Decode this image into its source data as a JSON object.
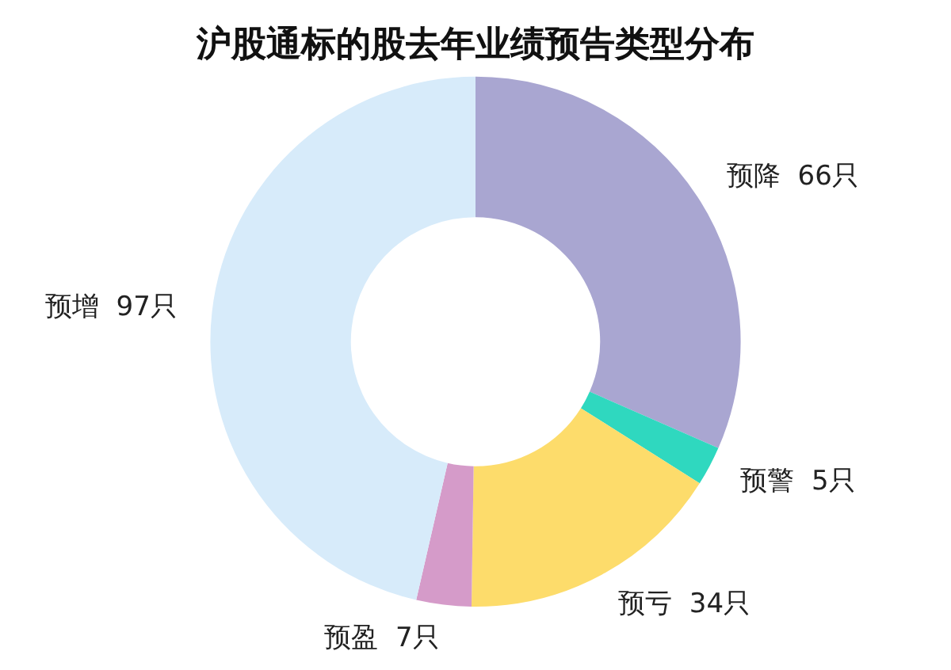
{
  "chart_data": {
    "type": "donut",
    "title": "沪股通标的股去年业绩预告类型分布",
    "categories": [
      "预降",
      "预警",
      "预亏",
      "预盈",
      "预增"
    ],
    "values": [
      66,
      5,
      34,
      7,
      97
    ],
    "value_labels": [
      "66只",
      "5只",
      "34只",
      "7只",
      "97只"
    ],
    "colors": [
      "#a9a6d1",
      "#2fd8bf",
      "#fddc6b",
      "#d59bc9",
      "#d7ebfa"
    ],
    "legend": false
  }
}
